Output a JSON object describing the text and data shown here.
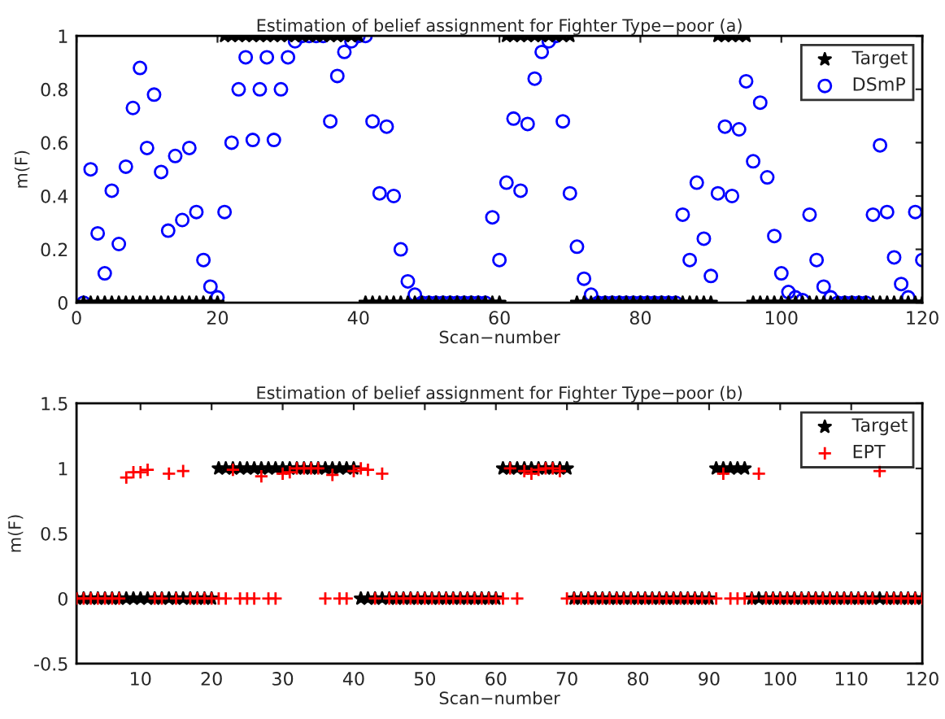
{
  "chart_data": [
    {
      "type": "scatter",
      "title": "Estimation of belief assignment for Fighter Type−poor (a)",
      "xlabel": "Scan−number",
      "ylabel": "m(F)",
      "x": [
        1,
        2,
        3,
        4,
        5,
        6,
        7,
        8,
        9,
        10,
        11,
        12,
        13,
        14,
        15,
        16,
        17,
        18,
        19,
        20,
        21,
        22,
        23,
        24,
        25,
        26,
        27,
        28,
        29,
        30,
        31,
        32,
        33,
        34,
        35,
        36,
        37,
        38,
        39,
        40,
        41,
        42,
        43,
        44,
        45,
        46,
        47,
        48,
        49,
        50,
        51,
        52,
        53,
        54,
        55,
        56,
        57,
        58,
        59,
        60,
        61,
        62,
        63,
        64,
        65,
        66,
        67,
        68,
        69,
        70,
        71,
        72,
        73,
        74,
        75,
        76,
        77,
        78,
        79,
        80,
        81,
        82,
        83,
        84,
        85,
        86,
        87,
        88,
        89,
        90,
        91,
        92,
        93,
        94,
        95,
        96,
        97,
        98,
        99,
        100,
        101,
        102,
        103,
        104,
        105,
        106,
        107,
        108,
        109,
        110,
        111,
        112,
        113,
        114,
        115,
        116,
        117,
        118,
        119,
        120
      ],
      "xlim": [
        0,
        120
      ],
      "xticks": [
        0,
        20,
        40,
        60,
        80,
        100,
        120
      ],
      "ylim": [
        0,
        1
      ],
      "yticks": [
        0,
        0.2,
        0.4,
        0.6,
        0.8,
        1
      ],
      "legend": "top right",
      "grid": false,
      "series": [
        {
          "name": "Target",
          "color": "#000000",
          "marker": "star",
          "values": [
            0,
            0,
            0,
            0,
            0,
            0,
            0,
            0,
            0,
            0,
            0,
            0,
            0,
            0,
            0,
            0,
            0,
            0,
            0,
            0,
            1,
            1,
            1,
            1,
            1,
            1,
            1,
            1,
            1,
            1,
            1,
            1,
            1,
            1,
            1,
            1,
            1,
            1,
            1,
            1,
            0,
            0,
            0,
            0,
            0,
            0,
            0,
            0,
            0,
            0,
            0,
            0,
            0,
            0,
            0,
            0,
            0,
            0,
            0,
            0,
            1,
            1,
            1,
            1,
            1,
            1,
            1,
            1,
            1,
            1,
            0,
            0,
            0,
            0,
            0,
            0,
            0,
            0,
            0,
            0,
            0,
            0,
            0,
            0,
            0,
            0,
            0,
            0,
            0,
            0,
            1,
            1,
            1,
            1,
            1,
            0,
            0,
            0,
            0,
            0,
            0,
            0,
            0,
            0,
            0,
            0,
            0,
            0,
            0,
            0,
            0,
            0,
            0,
            0,
            0,
            0,
            0,
            0,
            0,
            0
          ]
        },
        {
          "name": "DSmP",
          "color": "#0000ff",
          "marker": "circle",
          "values": [
            0,
            0.5,
            0.26,
            0.11,
            0.42,
            0.22,
            0.51,
            0.73,
            0.88,
            0.58,
            0.78,
            0.49,
            0.27,
            0.55,
            0.31,
            0.58,
            0.34,
            0.16,
            0.06,
            0.02,
            0.34,
            0.6,
            0.8,
            0.92,
            0.61,
            0.8,
            0.92,
            0.61,
            0.8,
            0.92,
            0.98,
            1,
            1,
            1,
            1,
            0.68,
            0.85,
            0.94,
            0.98,
            1,
            1,
            0.68,
            0.41,
            0.66,
            0.4,
            0.2,
            0.08,
            0.03,
            0,
            0,
            0,
            0,
            0,
            0,
            0,
            0,
            0,
            0,
            0.32,
            0.16,
            0.45,
            0.69,
            0.42,
            0.67,
            0.84,
            0.94,
            0.98,
            1,
            0.68,
            0.41,
            0.21,
            0.09,
            0.03,
            0,
            0,
            0,
            0,
            0,
            0,
            0,
            0,
            0,
            0,
            0,
            0,
            0.33,
            0.16,
            0.45,
            0.24,
            0.1,
            0.41,
            0.66,
            0.4,
            0.65,
            0.83,
            0.53,
            0.75,
            0.47,
            0.25,
            0.11,
            0.04,
            0.02,
            0.01,
            0.33,
            0.16,
            0.06,
            0.02,
            0,
            0,
            0,
            0,
            0,
            0.33,
            0.59,
            0.34,
            0.17,
            0.07,
            0.02,
            0.34,
            0.16
          ]
        }
      ]
    },
    {
      "type": "scatter",
      "title": "Estimation of belief assignment for Fighter Type−poor (b)",
      "xlabel": "Scan−number",
      "ylabel": "m(F)",
      "x": [
        1,
        2,
        3,
        4,
        5,
        6,
        7,
        8,
        9,
        10,
        11,
        12,
        13,
        14,
        15,
        16,
        17,
        18,
        19,
        20,
        21,
        22,
        23,
        24,
        25,
        26,
        27,
        28,
        29,
        30,
        31,
        32,
        33,
        34,
        35,
        36,
        37,
        38,
        39,
        40,
        41,
        42,
        43,
        44,
        45,
        46,
        47,
        48,
        49,
        50,
        51,
        52,
        53,
        54,
        55,
        56,
        57,
        58,
        59,
        60,
        61,
        62,
        63,
        64,
        65,
        66,
        67,
        68,
        69,
        70,
        71,
        72,
        73,
        74,
        75,
        76,
        77,
        78,
        79,
        80,
        81,
        82,
        83,
        84,
        85,
        86,
        87,
        88,
        89,
        90,
        91,
        92,
        93,
        94,
        95,
        96,
        97,
        98,
        99,
        100,
        101,
        102,
        103,
        104,
        105,
        106,
        107,
        108,
        109,
        110,
        111,
        112,
        113,
        114,
        115,
        116,
        117,
        118,
        119,
        120
      ],
      "xlim": [
        1,
        120
      ],
      "xticks": [
        10,
        20,
        30,
        40,
        50,
        60,
        70,
        80,
        90,
        100,
        110,
        120
      ],
      "ylim": [
        -0.5,
        1.5
      ],
      "yticks": [
        {
          "value": -0.5,
          "label": "-0.5"
        },
        0,
        0.5,
        1,
        1.5
      ],
      "legend": "top right",
      "grid": false,
      "series": [
        {
          "name": "Target",
          "color": "#000000",
          "marker": "star",
          "values": [
            0,
            0,
            0,
            0,
            0,
            0,
            0,
            0,
            0,
            0,
            0,
            0,
            0,
            0,
            0,
            0,
            0,
            0,
            0,
            0,
            1,
            1,
            1,
            1,
            1,
            1,
            1,
            1,
            1,
            1,
            1,
            1,
            1,
            1,
            1,
            1,
            1,
            1,
            1,
            1,
            0,
            0,
            0,
            0,
            0,
            0,
            0,
            0,
            0,
            0,
            0,
            0,
            0,
            0,
            0,
            0,
            0,
            0,
            0,
            0,
            1,
            1,
            1,
            1,
            1,
            1,
            1,
            1,
            1,
            1,
            0,
            0,
            0,
            0,
            0,
            0,
            0,
            0,
            0,
            0,
            0,
            0,
            0,
            0,
            0,
            0,
            0,
            0,
            0,
            0,
            1,
            1,
            1,
            1,
            1,
            0,
            0,
            0,
            0,
            0,
            0,
            0,
            0,
            0,
            0,
            0,
            0,
            0,
            0,
            0,
            0,
            0,
            0,
            0,
            0,
            0,
            0,
            0,
            0,
            0
          ]
        },
        {
          "name": "EPT",
          "color": "#ff0000",
          "marker": "cross",
          "values": [
            0,
            0,
            0,
            0,
            0,
            0,
            0,
            0.93,
            0.97,
            0.97,
            0.99,
            0,
            0,
            0.96,
            0,
            0.98,
            0,
            0,
            0,
            0,
            0,
            0,
            0.99,
            0,
            0,
            0,
            0.94,
            0,
            0,
            0.96,
            0.97,
            1,
            1,
            1,
            1,
            0,
            0.95,
            0,
            0,
            0.98,
            1,
            0.99,
            0,
            0.96,
            0,
            0,
            0,
            0,
            0,
            0,
            0,
            0,
            0,
            0,
            0,
            0,
            0,
            0,
            0,
            0,
            0,
            1,
            0,
            0.98,
            0.96,
            0.99,
            1,
            1,
            0.98,
            0,
            0,
            0,
            0,
            0,
            0,
            0,
            0,
            0,
            0,
            0,
            0,
            0,
            0,
            0,
            0,
            0,
            0,
            0,
            0,
            0,
            0,
            0.96,
            0,
            0,
            0,
            0,
            0.96,
            0,
            0,
            0,
            0,
            0,
            0,
            0,
            0,
            0,
            0,
            0,
            0,
            0,
            0,
            0,
            0,
            0.98,
            0,
            0,
            0,
            0,
            0,
            0
          ]
        }
      ]
    }
  ]
}
